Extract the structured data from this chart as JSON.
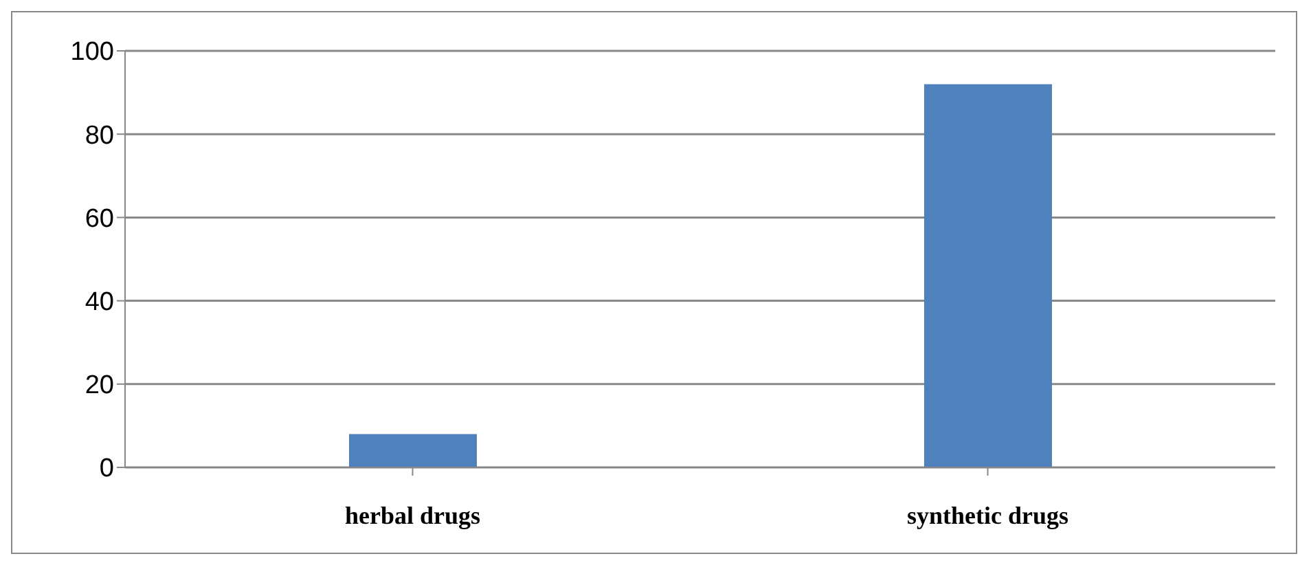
{
  "chart_data": {
    "type": "bar",
    "categories": [
      "herbal drugs",
      "synthetic drugs"
    ],
    "values": [
      8,
      92
    ],
    "color": "#4f81bd",
    "ylim": [
      0,
      100
    ],
    "yticks": [
      0,
      20,
      40,
      60,
      80,
      100
    ],
    "grid": "y"
  }
}
